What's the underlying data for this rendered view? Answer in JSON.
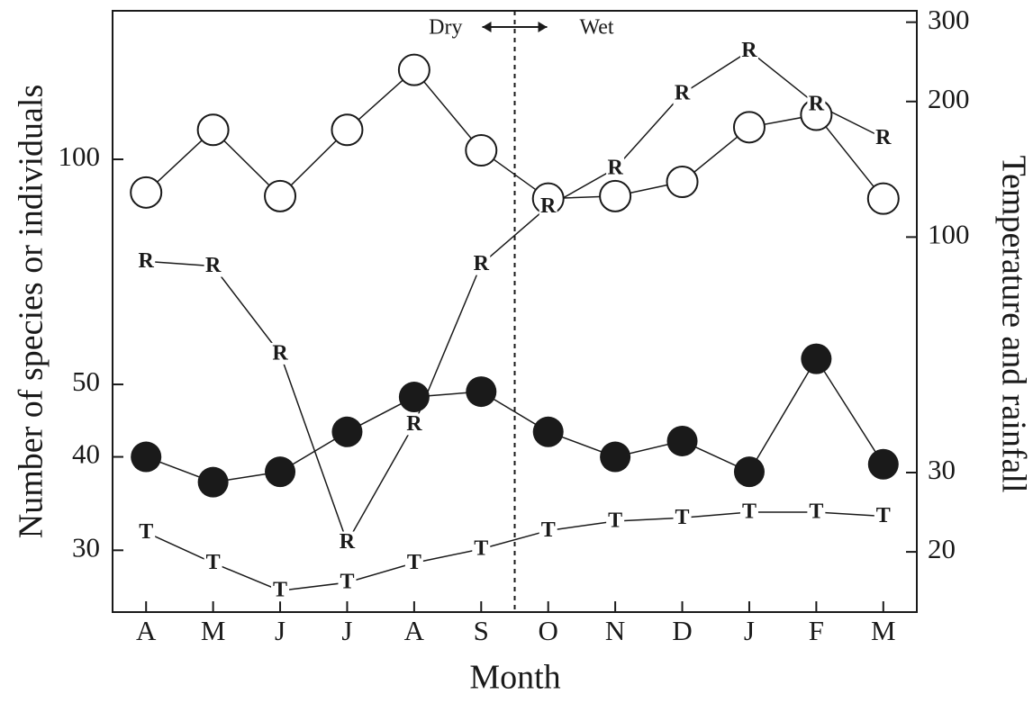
{
  "chart_data": {
    "type": "line",
    "x_label": "Month",
    "y_label": "Number of species or individuals",
    "y2_label": "Temperature and rainfall",
    "categories": [
      "A",
      "M",
      "J",
      "J",
      "A",
      "S",
      "O",
      "N",
      "D",
      "J",
      "F",
      "M"
    ],
    "ylim": [
      24.8,
      158
    ],
    "yticks": [
      30,
      40,
      50,
      100
    ],
    "y_log": true,
    "y2lim": [
      14.7,
      318
    ],
    "y2ticks": [
      20,
      30,
      100,
      200,
      300
    ],
    "y2_log": true,
    "annotations": [
      {
        "text": "Dry"
      },
      {
        "text": "Wet"
      }
    ],
    "divider_position": 5.5,
    "series": [
      {
        "marker": "open-circle",
        "color": "#1a1a1a",
        "values": [
          90.3,
          109.5,
          89.3,
          109.5,
          131.7,
          102.8,
          88.6,
          89.3,
          93.3,
          110.4,
          114.7,
          88.6
        ]
      },
      {
        "marker": "filled-circle",
        "color": "#1a1a1a",
        "values": [
          40,
          37.0,
          38.2,
          43.2,
          48.1,
          48.9,
          43.2,
          40,
          42.0,
          38.2,
          54.1,
          39.1
        ]
      },
      {
        "marker": "letter",
        "marker_label": "R",
        "axis": "y2",
        "color": "#1a1a1a",
        "values": [
          88.3,
          86.2,
          55.1,
          21.0,
          38.4,
          87.0,
          117,
          142,
          208,
          259,
          197,
          166
        ]
      },
      {
        "marker": "letter",
        "marker_label": "T",
        "axis": "y2",
        "color": "#1a1a1a",
        "values": [
          22.1,
          18.9,
          16.4,
          17.1,
          18.9,
          20.3,
          22.3,
          23.4,
          23.8,
          24.5,
          24.5,
          24.0
        ]
      }
    ]
  }
}
